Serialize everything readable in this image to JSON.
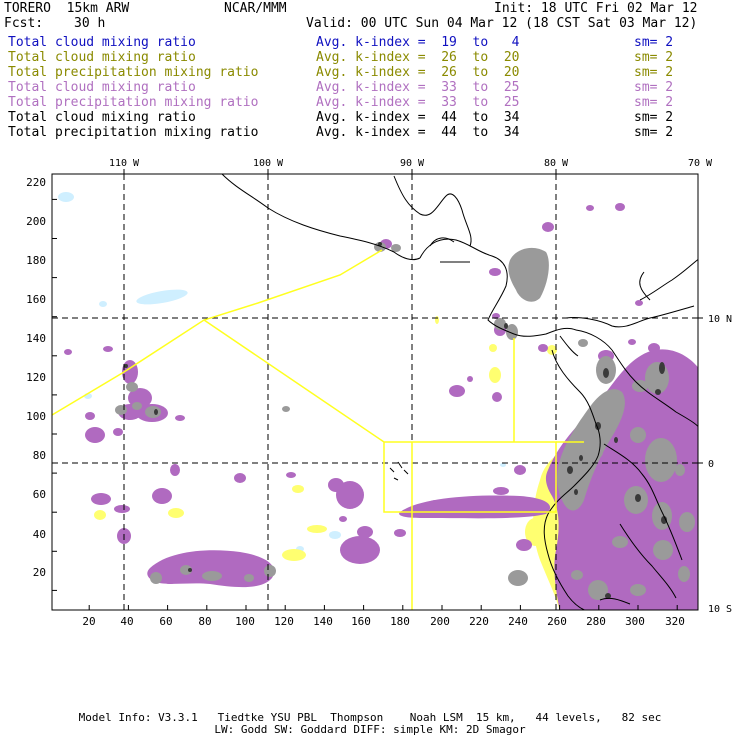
{
  "header": {
    "model": "TORERO  15km ARW",
    "org": "NCAR/MMM",
    "init": "Init: 18 UTC Fri 02 Mar 12",
    "fcst_label": "Fcst:",
    "fcst_value": "30 h",
    "valid": "Valid: 00 UTC Sun 04 Mar 12 (18 CST Sat 03 Mar 12)"
  },
  "legend": [
    {
      "field": "Total cloud mixing ratio",
      "kindex": "Avg. k-index =  19  to   4",
      "sm": "sm= 2",
      "color": "#1010c0"
    },
    {
      "field": "Total cloud mixing ratio",
      "kindex": "Avg. k-index =  26  to  20",
      "sm": "sm= 2",
      "color": "#8a8a00"
    },
    {
      "field": "Total precipitation mixing ratio",
      "kindex": "Avg. k-index =  26  to  20",
      "sm": "sm= 2",
      "color": "#8a8a00"
    },
    {
      "field": "Total cloud mixing ratio",
      "kindex": "Avg. k-index =  33  to  25",
      "sm": "sm= 2",
      "color": "#b070c0"
    },
    {
      "field": "Total precipitation mixing ratio",
      "kindex": "Avg. k-index =  33  to  25",
      "sm": "sm= 2",
      "color": "#b070c0"
    },
    {
      "field": "Total cloud mixing ratio",
      "kindex": "Avg. k-index =  44  to  34",
      "sm": "sm= 2",
      "color": "#000000"
    },
    {
      "field": "Total precipitation mixing ratio",
      "kindex": "Avg. k-index =  44  to  34",
      "sm": "sm= 2",
      "color": "#000000"
    }
  ],
  "axes": {
    "x_ticks": [
      "20",
      "40",
      "60",
      "80",
      "100",
      "120",
      "140",
      "160",
      "180",
      "200",
      "220",
      "240",
      "260",
      "280",
      "300",
      "320"
    ],
    "y_ticks": [
      "20",
      "40",
      "60",
      "80",
      "100",
      "120",
      "140",
      "160",
      "180",
      "200",
      "220"
    ],
    "lon_labels": [
      "110 W",
      "100 W",
      "90 W",
      "80 W",
      "70 W"
    ],
    "lat_labels": [
      "10 N",
      "0",
      "10 S"
    ]
  },
  "footer": {
    "line1": "Model Info: V3.3.1   Tiedtke YSU PBL  Thompson    Noah LSM  15 km,   44 levels,   82 sec",
    "line2": "LW: Godd SW: Goddard DIFF: simple KM: 2D Smagor"
  },
  "colors": {
    "purple": "#b06ac0",
    "gray": "#9a9a9a",
    "darkgray": "#3a3a3a",
    "yellow": "#ffff70",
    "lightblue": "#cfefff",
    "outline_yellow": "#ffff20"
  }
}
